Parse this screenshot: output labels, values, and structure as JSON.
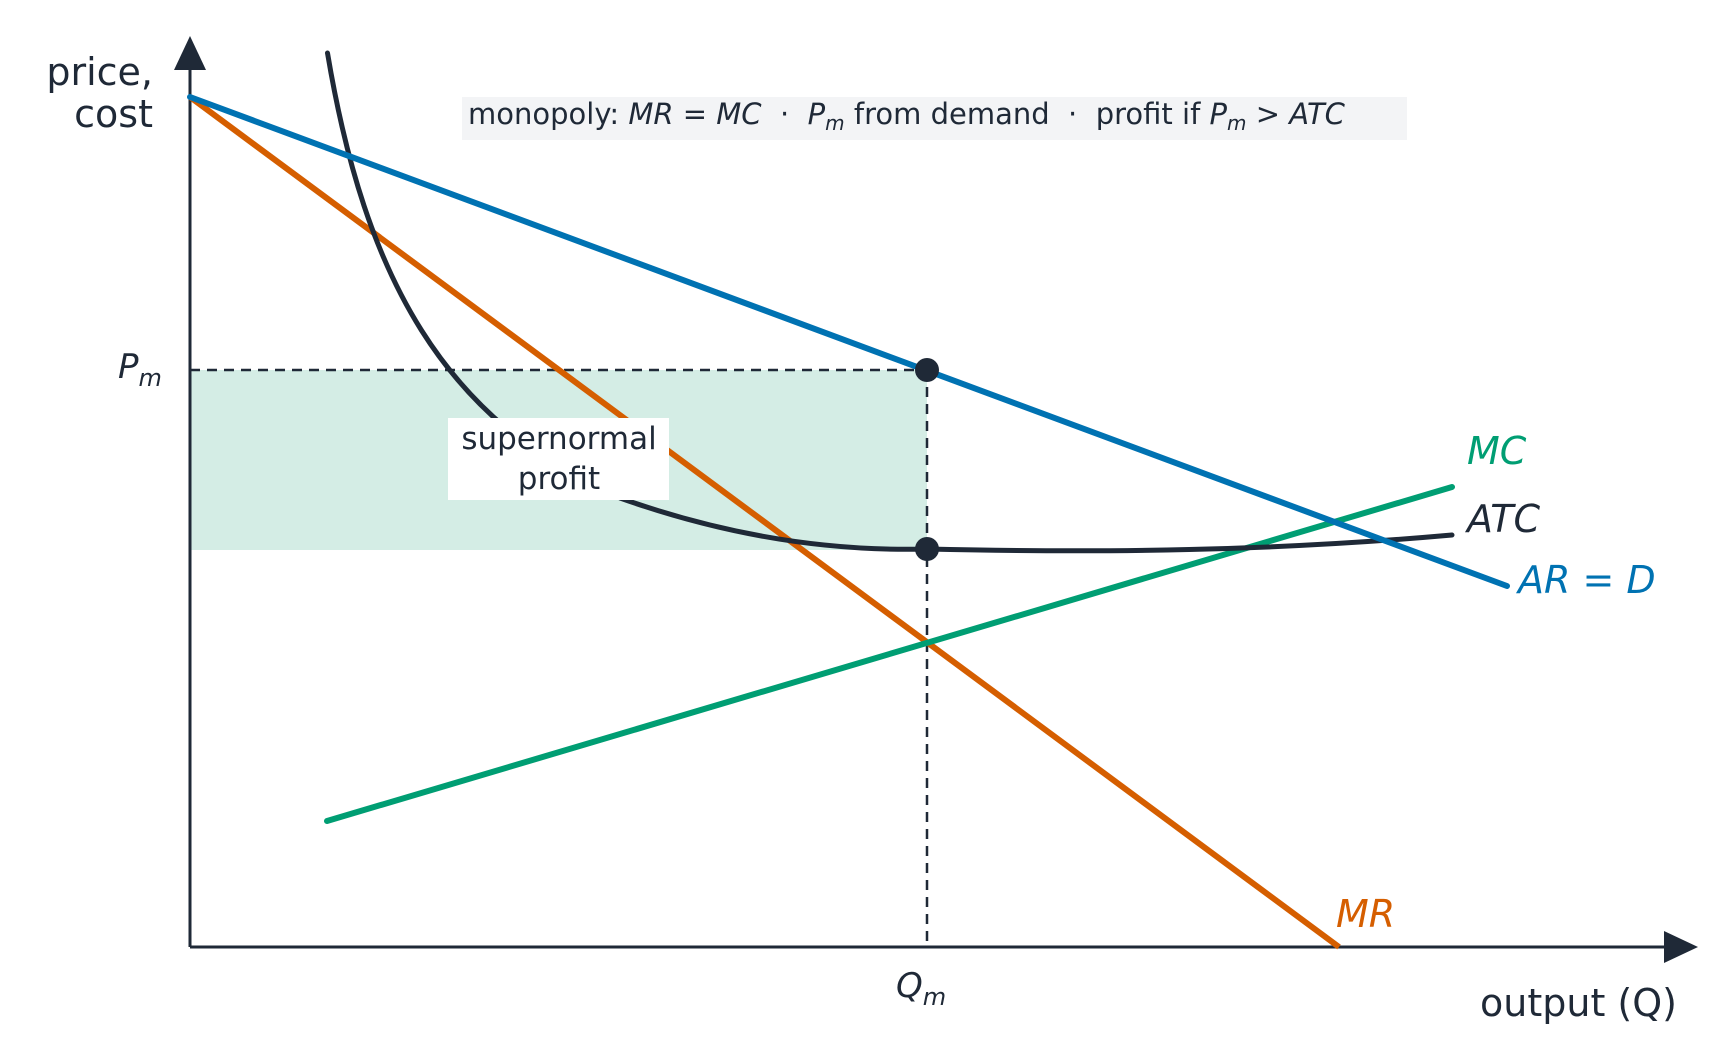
{
  "y_axis_label": [
    "price,",
    "cost"
  ],
  "x_axis_label": "output (Q)",
  "annotation": [
    "monopoly: ",
    "MR = MC",
    "  ·  ",
    "P",
    "m",
    " from demand  ·  profit if ",
    "P",
    "m",
    " > ATC"
  ],
  "price_label": {
    "main": "P",
    "sub": "m"
  },
  "quantity_label": {
    "main": "Q",
    "sub": "m"
  },
  "profit_label": [
    "supernormal",
    "profit"
  ],
  "curves": {
    "mc": "MC",
    "atc": "ATC",
    "demand": "AR = D",
    "mr": "MR"
  }
}
